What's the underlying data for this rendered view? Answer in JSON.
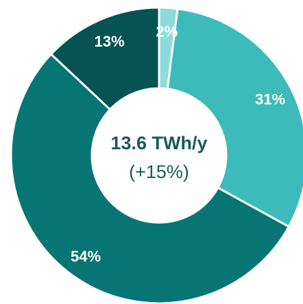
{
  "chart_data": {
    "type": "pie",
    "donut": true,
    "start_angle_deg": 0,
    "direction": "clockwise",
    "slices": [
      {
        "value": 2,
        "label": "2%",
        "color": "#8ddcdc"
      },
      {
        "value": 31,
        "label": "31%",
        "color": "#3dbbbb"
      },
      {
        "value": 54,
        "label": "54%",
        "color": "#087575"
      },
      {
        "value": 13,
        "label": "13%",
        "color": "#065353"
      }
    ],
    "center_text": {
      "value": "13.6 TWh/y",
      "change": "(+15%)"
    },
    "colors": {
      "label": "#ffffff",
      "center_text": "#1a5a5a",
      "separator": "#ffffff"
    }
  }
}
